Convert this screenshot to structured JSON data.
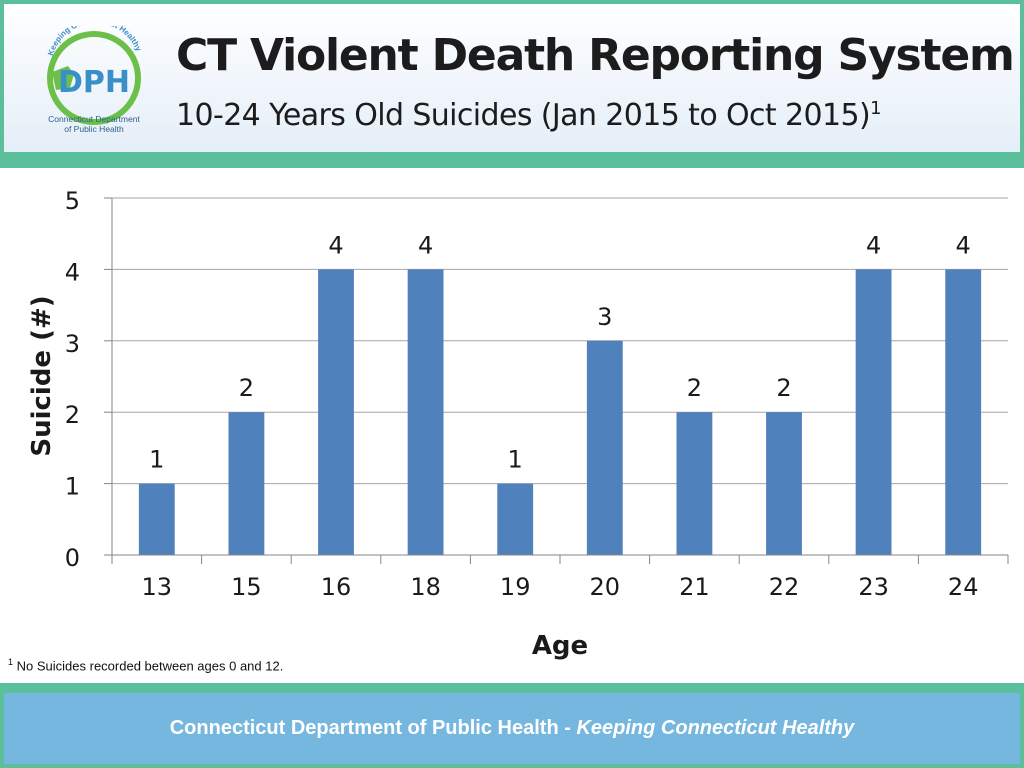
{
  "header": {
    "title": "CT Violent Death Reporting System",
    "subtitle": "10-24 Years Old Suicides (Jan 2015 to Oct 2015)",
    "subtitle_note_marker": "1",
    "logo": {
      "acronym": "DPH",
      "arc_text": "Keeping Connecticut Healthy",
      "caption_line1": "Connecticut Department",
      "caption_line2": "of Public Health"
    }
  },
  "chart_data": {
    "type": "bar",
    "categories": [
      "13",
      "15",
      "16",
      "18",
      "19",
      "20",
      "21",
      "22",
      "23",
      "24"
    ],
    "values": [
      1,
      2,
      4,
      4,
      1,
      3,
      2,
      2,
      4,
      4
    ],
    "xlabel": "Age",
    "ylabel": "Suicide (#)",
    "ylim": [
      0,
      5
    ],
    "yticks": [
      0,
      1,
      2,
      3,
      4,
      5
    ],
    "grid": true,
    "data_labels": true,
    "bar_color": "#4f81bd"
  },
  "footnote": {
    "marker": "1",
    "text": "No Suicides recorded between ages 0 and 12."
  },
  "footer": {
    "org": "Connecticut Department of Public Health",
    "separator": " - ",
    "tagline": "Keeping Connecticut Healthy"
  },
  "colors": {
    "accent_green": "#5bbf9c",
    "footer_blue": "#76b7e0",
    "logo_blue": "#3a8fc8",
    "logo_green": "#6cc04a"
  }
}
